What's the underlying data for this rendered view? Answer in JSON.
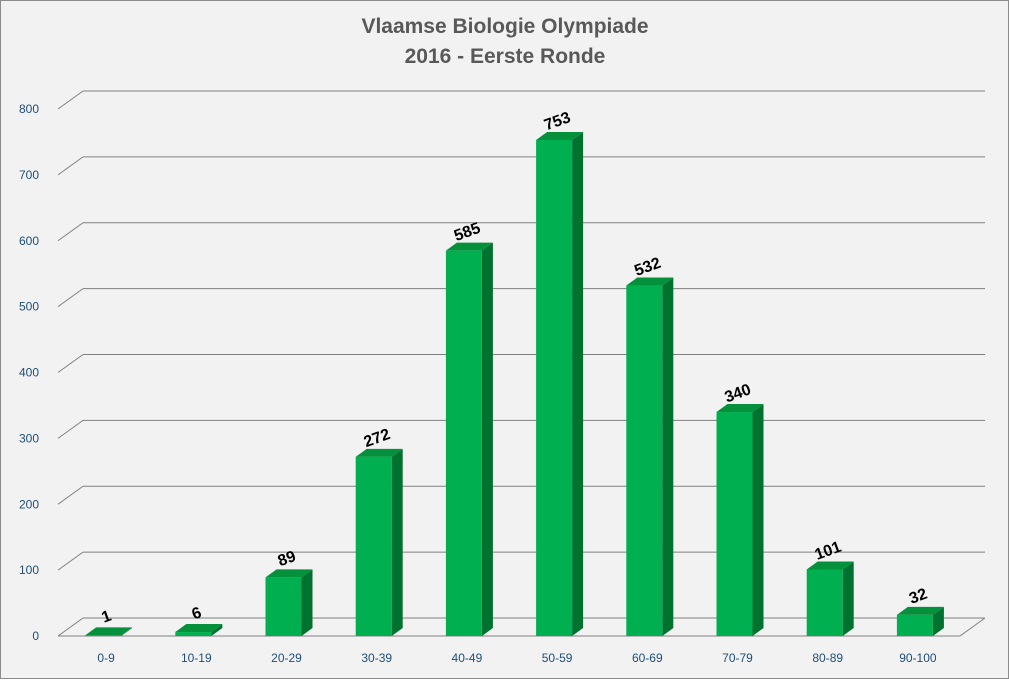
{
  "chart_data": {
    "type": "bar",
    "title": "Vlaamse Biologie Olympiade",
    "subtitle": "2016 - Eerste Ronde",
    "categories": [
      "0-9",
      "10-19",
      "20-29",
      "30-39",
      "40-49",
      "50-59",
      "60-69",
      "70-79",
      "80-89",
      "90-100"
    ],
    "values": [
      1,
      6,
      89,
      272,
      585,
      753,
      532,
      340,
      101,
      32
    ],
    "data_labels": [
      "1",
      "6",
      "89",
      "272",
      "585",
      "753",
      "532",
      "340",
      "101",
      "32"
    ],
    "yticks": [
      "0",
      "100",
      "200",
      "300",
      "400",
      "500",
      "600",
      "700",
      "800"
    ],
    "ylim": [
      0,
      800
    ],
    "grid": true,
    "style": "3d-column",
    "colors": {
      "bar_front": "#00b050",
      "bar_top": "#05903c",
      "bar_side": "#00722f",
      "background": "#f2f2f2",
      "gridline": "#808080",
      "tick_text": "#1f4e79",
      "title_text": "#595959"
    }
  }
}
